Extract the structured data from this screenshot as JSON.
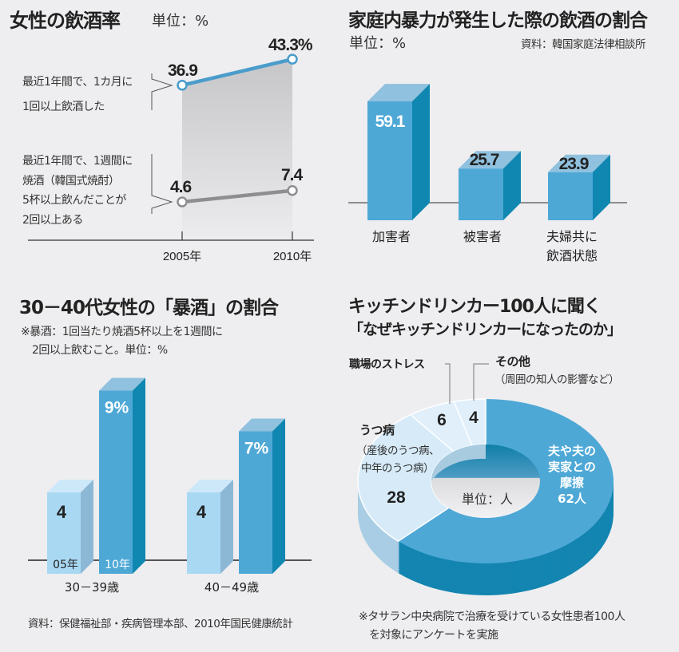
{
  "chart_data": [
    {
      "type": "line",
      "title": "女性の飲酒率",
      "unit": "単位：%",
      "x": [
        "2005年",
        "2010年"
      ],
      "series": [
        {
          "name": "最近1年間で、1カ月に1回以上飲酒した",
          "label_lines": [
            "最近1年間で、1カ月に",
            "1回以上飲酒した"
          ],
          "values": [
            36.9,
            43.3
          ],
          "value_labels": [
            "36.9",
            "43.3%"
          ],
          "color": "#4a9ccb"
        },
        {
          "name": "最近1年間で、1週間に焼酒（韓国式焼酎）5杯以上飲んだことが2回以上ある",
          "label_lines": [
            "最近1年間で、1週間に",
            "焼酒（韓国式焼酎）",
            "5杯以上飲んだことが",
            "2回以上ある"
          ],
          "values": [
            4.6,
            7.4
          ],
          "value_labels": [
            "4.6",
            "7.4"
          ],
          "color": "#8e8e90"
        }
      ]
    },
    {
      "type": "bar",
      "title": "家庭内暴力が発生した際の飲酒の割合",
      "unit": "単位：%",
      "source": "資料：韓国家庭法律相談所",
      "categories": [
        [
          "加害者"
        ],
        [
          "被害者"
        ],
        [
          "夫婦共に",
          "飲酒状態"
        ]
      ],
      "values": [
        59.1,
        25.7,
        23.9
      ],
      "value_labels": [
        "59.1",
        "25.7",
        "23.9"
      ],
      "color": "#4ea8d6"
    },
    {
      "type": "bar",
      "title": "30－40代女性の「暴酒」の割合",
      "note_lines": [
        "※暴酒：1回当たり焼酒5杯以上を1週間に",
        "2回以上飲むこと。単位：%"
      ],
      "categories": [
        "30－39歳",
        "40－49歳"
      ],
      "series": [
        {
          "name": "05年",
          "values": [
            4,
            4
          ],
          "value_labels": [
            "4",
            "4"
          ],
          "color": "#a9d8f3"
        },
        {
          "name": "10年",
          "values": [
            9,
            7
          ],
          "value_labels": [
            "9%",
            "7%"
          ],
          "color": "#4ea8d6"
        }
      ],
      "source": "資料：保健福祉部・疾病管理本部、2010年国民健康統計"
    },
    {
      "type": "pie",
      "title": "キッチンドリンカー100人に聞く",
      "subtitle": "「なぜキッチンドリンカーになったのか」",
      "unit": "単位：人",
      "slices": [
        {
          "label_lines": [
            "夫や夫の",
            "実家との",
            "摩擦",
            "62人"
          ],
          "value": 62,
          "color": "#4ea8d6"
        },
        {
          "label_lines": [
            "うつ病",
            "（産後のうつ病、",
            "中年のうつ病）"
          ],
          "value": 28,
          "value_label": "28",
          "color": "#d6eaf8"
        },
        {
          "label_lines": [
            "職場のストレス"
          ],
          "value": 6,
          "value_label": "6",
          "color": "#e0effa"
        },
        {
          "label_lines": [
            "その他",
            "（周囲の知人の影響など）"
          ],
          "value": 4,
          "value_label": "4",
          "color": "#e0effa"
        }
      ],
      "footnote_lines": [
        "※タサラン中央病院で治療を受けている女性患者100人",
        "を対象にアンケートを実施"
      ]
    }
  ]
}
